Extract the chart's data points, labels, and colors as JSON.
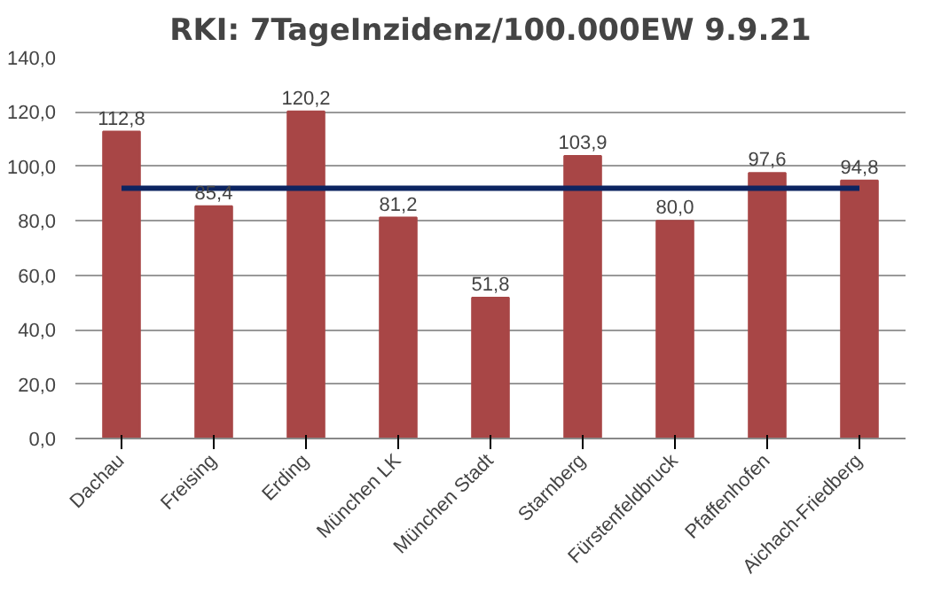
{
  "chart_data": {
    "type": "bar",
    "title": "RKI: 7TageInzidenz/100.000EW 9.9.21",
    "categories": [
      "Dachau",
      "Freising",
      "Erding",
      "München LK",
      "München Stadt",
      "Starnberg",
      "Fürstenfeldbruck",
      "Pfaffenhofen",
      "Aichach-Friedberg"
    ],
    "series": [
      {
        "color": "#a84646",
        "values": [
          112.8,
          85.4,
          120.2,
          81.2,
          51.8,
          103.9,
          80.0,
          97.6,
          94.8
        ],
        "value_labels": [
          "112,8",
          "85,4",
          "120,2",
          "81,2",
          "51,8",
          "103,9",
          "80,0",
          "97,6",
          "94,8"
        ]
      },
      {
        "type": "line",
        "color": "#0c2461",
        "values": [
          92,
          92,
          92,
          92,
          92,
          92,
          92,
          92,
          92
        ]
      }
    ],
    "ylim": [
      0,
      140
    ],
    "yticks": [
      {
        "value": 0,
        "label": "0,0"
      },
      {
        "value": 20,
        "label": "20,0"
      },
      {
        "value": 40,
        "label": "40,0"
      },
      {
        "value": 60,
        "label": "60,0"
      },
      {
        "value": 80,
        "label": "80,0"
      },
      {
        "value": 100,
        "label": "100,0"
      },
      {
        "value": 120,
        "label": "120,0"
      },
      {
        "value": 140,
        "label": "140,0"
      }
    ],
    "grid": "y"
  }
}
